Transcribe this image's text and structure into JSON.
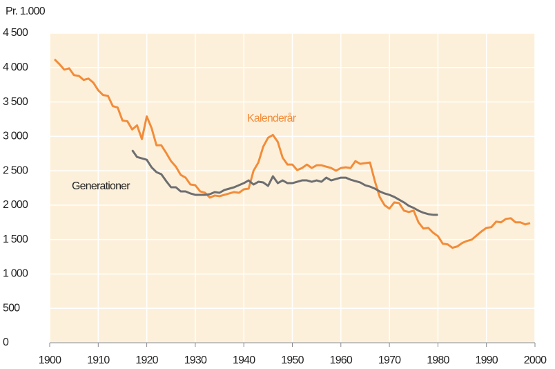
{
  "chart_data": {
    "type": "line",
    "y_label": "Pr. 1.000",
    "xlim": [
      1900,
      2000
    ],
    "xticks": [
      1900,
      1910,
      1920,
      1930,
      1940,
      1950,
      1960,
      1970,
      1980,
      1990,
      2000
    ],
    "ylim": [
      0,
      4500
    ],
    "yticks": [
      0,
      500,
      {
        "value": 1000,
        "label": "1 000"
      },
      {
        "value": 1500,
        "label": "1 500"
      },
      {
        "value": 2000,
        "label": "2 000"
      },
      {
        "value": 2500,
        "label": "2 500"
      },
      {
        "value": 3000,
        "label": "3 000"
      },
      {
        "value": 3500,
        "label": "3 500"
      },
      {
        "value": 4000,
        "label": "4 000"
      },
      {
        "value": 4500,
        "label": "4 500"
      }
    ],
    "grid": true,
    "background": "#fdf0da",
    "series": [
      {
        "name": "Kalenderår",
        "color": "#f28c3a",
        "x": [
          1901,
          1902,
          1903,
          1904,
          1905,
          1906,
          1907,
          1908,
          1909,
          1910,
          1911,
          1912,
          1913,
          1914,
          1915,
          1916,
          1917,
          1918,
          1919,
          1920,
          1921,
          1922,
          1923,
          1924,
          1925,
          1926,
          1927,
          1928,
          1929,
          1930,
          1931,
          1932,
          1933,
          1934,
          1935,
          1936,
          1937,
          1938,
          1939,
          1940,
          1941,
          1942,
          1943,
          1944,
          1945,
          1946,
          1947,
          1948,
          1949,
          1950,
          1951,
          1952,
          1953,
          1954,
          1955,
          1956,
          1957,
          1958,
          1959,
          1960,
          1961,
          1962,
          1963,
          1964,
          1965,
          1966,
          1967,
          1968,
          1969,
          1970,
          1971,
          1972,
          1973,
          1974,
          1975,
          1976,
          1977,
          1978,
          1979,
          1980,
          1981,
          1982,
          1983,
          1984,
          1985,
          1986,
          1987,
          1988,
          1989,
          1990,
          1991,
          1992,
          1993,
          1994,
          1995,
          1996,
          1997,
          1998,
          1999
        ],
        "values": [
          4120,
          4050,
          3970,
          3990,
          3890,
          3880,
          3820,
          3840,
          3780,
          3670,
          3600,
          3590,
          3440,
          3420,
          3230,
          3220,
          3100,
          3160,
          2960,
          3290,
          3120,
          2870,
          2870,
          2760,
          2640,
          2560,
          2440,
          2400,
          2300,
          2290,
          2200,
          2180,
          2110,
          2140,
          2130,
          2150,
          2170,
          2190,
          2180,
          2230,
          2240,
          2500,
          2620,
          2850,
          2980,
          3020,
          2920,
          2690,
          2590,
          2590,
          2510,
          2540,
          2590,
          2540,
          2580,
          2580,
          2560,
          2540,
          2500,
          2540,
          2550,
          2540,
          2640,
          2600,
          2610,
          2620,
          2350,
          2120,
          2000,
          1950,
          2040,
          2030,
          1920,
          1900,
          1920,
          1750,
          1660,
          1670,
          1600,
          1550,
          1440,
          1430,
          1380,
          1400,
          1450,
          1480,
          1500,
          1560,
          1620,
          1670,
          1680,
          1760,
          1750,
          1800,
          1810,
          1750,
          1750,
          1720,
          1740
        ]
      },
      {
        "name": "Generationer",
        "color": "#6d6e71",
        "x": [
          1917,
          1918,
          1919,
          1920,
          1921,
          1922,
          1923,
          1924,
          1925,
          1926,
          1927,
          1928,
          1929,
          1930,
          1931,
          1932,
          1933,
          1934,
          1935,
          1936,
          1937,
          1938,
          1939,
          1940,
          1941,
          1942,
          1943,
          1944,
          1945,
          1946,
          1947,
          1948,
          1949,
          1950,
          1951,
          1952,
          1953,
          1954,
          1955,
          1956,
          1957,
          1958,
          1959,
          1960,
          1961,
          1962,
          1963,
          1964,
          1965,
          1966,
          1967,
          1968,
          1969,
          1970,
          1971,
          1972,
          1973,
          1974,
          1975,
          1976,
          1977,
          1978,
          1979,
          1980
        ],
        "values": [
          2800,
          2700,
          2680,
          2660,
          2550,
          2480,
          2450,
          2350,
          2260,
          2260,
          2200,
          2200,
          2170,
          2150,
          2150,
          2150,
          2160,
          2190,
          2180,
          2220,
          2240,
          2260,
          2290,
          2320,
          2360,
          2300,
          2340,
          2330,
          2280,
          2420,
          2320,
          2360,
          2320,
          2320,
          2340,
          2360,
          2360,
          2340,
          2360,
          2340,
          2400,
          2360,
          2380,
          2400,
          2400,
          2370,
          2350,
          2330,
          2290,
          2270,
          2240,
          2200,
          2170,
          2150,
          2120,
          2080,
          2040,
          1990,
          1960,
          1920,
          1890,
          1870,
          1860,
          1860
        ]
      }
    ]
  }
}
